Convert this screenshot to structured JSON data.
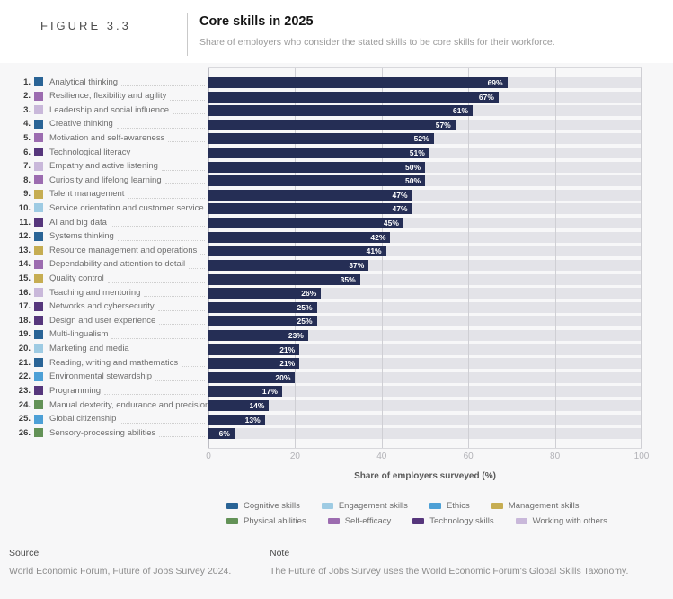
{
  "figure": {
    "label": "FIGURE 3.3",
    "title": "Core skills in 2025",
    "subtitle": "Share of employers who consider the stated skills to be core skills for their workforce."
  },
  "chart_data": {
    "type": "bar",
    "orientation": "horizontal",
    "title": "Core skills in 2025",
    "xlabel": "Share of employers surveyed (%)",
    "xlim": [
      0,
      100
    ],
    "xticks": [
      0,
      20,
      40,
      60,
      80,
      100
    ],
    "bar_color": "#252e55",
    "track_color": "#e3e3e8",
    "items": [
      {
        "rank": "1.",
        "label": "Analytical thinking",
        "value": 69,
        "category": "cognitive"
      },
      {
        "rank": "2.",
        "label": "Resilience, flexibility and agility",
        "value": 67,
        "category": "selfefficacy"
      },
      {
        "rank": "3.",
        "label": "Leadership and social influence",
        "value": 61,
        "category": "working"
      },
      {
        "rank": "4.",
        "label": "Creative thinking",
        "value": 57,
        "category": "cognitive"
      },
      {
        "rank": "5.",
        "label": "Motivation and self-awareness",
        "value": 52,
        "category": "selfefficacy"
      },
      {
        "rank": "6.",
        "label": "Technological literacy",
        "value": 51,
        "category": "technology"
      },
      {
        "rank": "7.",
        "label": "Empathy and active listening",
        "value": 50,
        "category": "working"
      },
      {
        "rank": "8.",
        "label": "Curiosity and lifelong learning",
        "value": 50,
        "category": "selfefficacy"
      },
      {
        "rank": "9.",
        "label": "Talent management",
        "value": 47,
        "category": "management"
      },
      {
        "rank": "10.",
        "label": "Service orientation and customer service",
        "value": 47,
        "category": "engagement"
      },
      {
        "rank": "11.",
        "label": "AI and big data",
        "value": 45,
        "category": "technology"
      },
      {
        "rank": "12.",
        "label": "Systems thinking",
        "value": 42,
        "category": "cognitive"
      },
      {
        "rank": "13.",
        "label": "Resource management and operations",
        "value": 41,
        "category": "management"
      },
      {
        "rank": "14.",
        "label": "Dependability and attention to detail",
        "value": 37,
        "category": "selfefficacy"
      },
      {
        "rank": "15.",
        "label": "Quality control",
        "value": 35,
        "category": "management"
      },
      {
        "rank": "16.",
        "label": "Teaching and mentoring",
        "value": 26,
        "category": "working"
      },
      {
        "rank": "17.",
        "label": "Networks and cybersecurity",
        "value": 25,
        "category": "technology"
      },
      {
        "rank": "18.",
        "label": "Design and user experience",
        "value": 25,
        "category": "technology"
      },
      {
        "rank": "19.",
        "label": "Multi-lingualism",
        "value": 23,
        "category": "cognitive"
      },
      {
        "rank": "20.",
        "label": "Marketing and media",
        "value": 21,
        "category": "engagement"
      },
      {
        "rank": "21.",
        "label": "Reading, writing and mathematics",
        "value": 21,
        "category": "cognitive"
      },
      {
        "rank": "22.",
        "label": "Environmental stewardship",
        "value": 20,
        "category": "ethics"
      },
      {
        "rank": "23.",
        "label": "Programming",
        "value": 17,
        "category": "technology"
      },
      {
        "rank": "24.",
        "label": "Manual dexterity, endurance and precision",
        "value": 14,
        "category": "physical"
      },
      {
        "rank": "25.",
        "label": "Global citizenship",
        "value": 13,
        "category": "ethics"
      },
      {
        "rank": "26.",
        "label": "Sensory-processing abilities",
        "value": 6,
        "category": "physical"
      }
    ],
    "categories": {
      "cognitive": {
        "label": "Cognitive skills",
        "color": "#2a6496"
      },
      "engagement": {
        "label": "Engagement skills",
        "color": "#9ecbe3"
      },
      "ethics": {
        "label": "Ethics",
        "color": "#4da0d6"
      },
      "management": {
        "label": "Management skills",
        "color": "#c6ad52"
      },
      "physical": {
        "label": "Physical abilities",
        "color": "#639257"
      },
      "selfefficacy": {
        "label": "Self-efficacy",
        "color": "#9c6cb0"
      },
      "technology": {
        "label": "Technology skills",
        "color": "#56367c"
      },
      "working": {
        "label": "Working with others",
        "color": "#c9b8da"
      }
    },
    "legend_rows": [
      [
        "cognitive",
        "engagement",
        "ethics",
        "management"
      ],
      [
        "physical",
        "selfefficacy",
        "technology",
        "working"
      ]
    ]
  },
  "footer": {
    "source_heading": "Source",
    "source_text": "World Economic Forum, Future of Jobs Survey 2024.",
    "note_heading": "Note",
    "note_text": "The Future of Jobs Survey uses the World Economic Forum's Global Skills Taxonomy."
  }
}
